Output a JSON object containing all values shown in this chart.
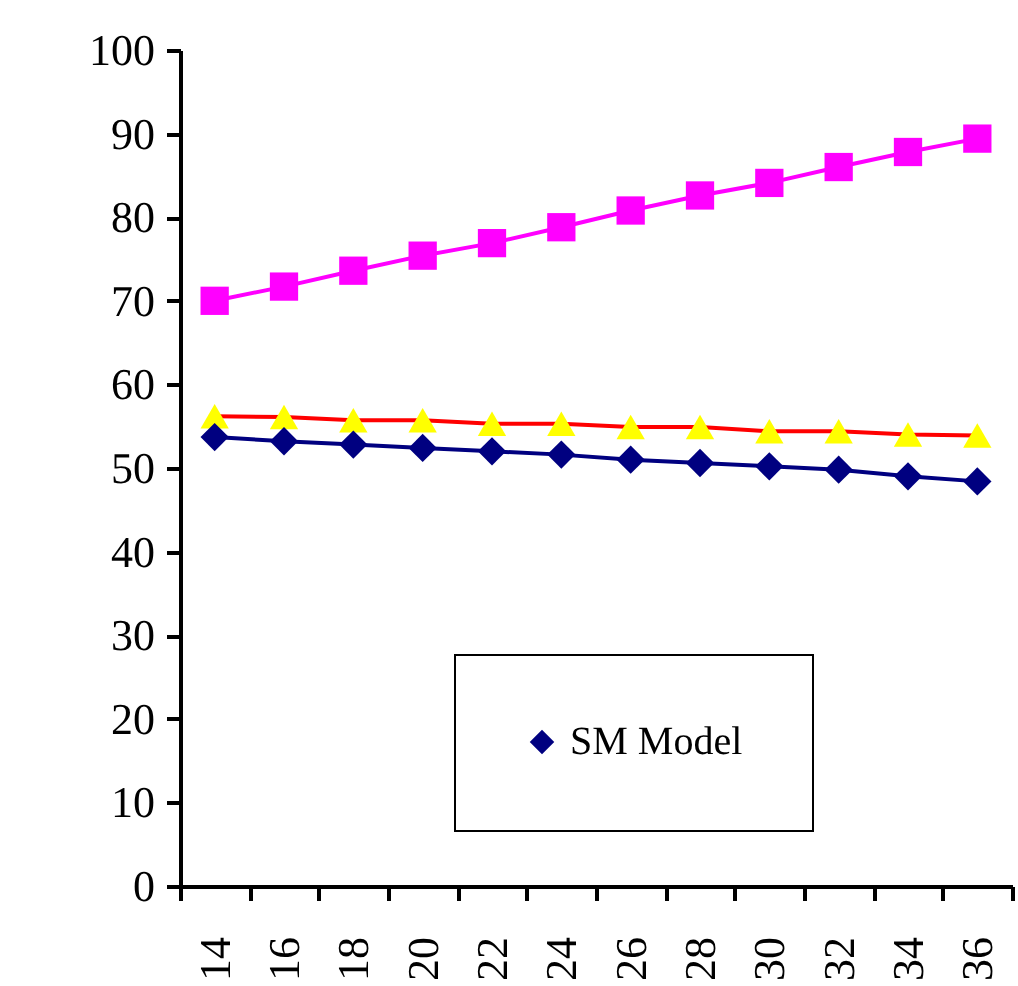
{
  "chart_data": {
    "type": "line",
    "categories": [
      "14",
      "16",
      "18",
      "20",
      "22",
      "24",
      "26",
      "28",
      "30",
      "32",
      "34",
      "36"
    ],
    "ylim": [
      0,
      100
    ],
    "yticks": [
      0,
      10,
      20,
      30,
      40,
      50,
      60,
      70,
      80,
      90,
      100
    ],
    "grid": false,
    "legend": "bottom right",
    "series": [
      {
        "color": "#ff00ff",
        "marker": "square",
        "values": [
          70,
          71.7,
          73.6,
          75.4,
          76.9,
          78.8,
          80.8,
          82.6,
          84.1,
          86.0,
          87.8,
          89.4
        ]
      },
      {
        "color": "#ff0000",
        "marker": "triangle",
        "colors": [
          "#ffff00",
          "#ffff00",
          "#ffff00",
          "#ffff00",
          "#ffff00",
          "#ffff00",
          "#ffff00",
          "#ffff00",
          "#ffff00",
          "#ffff00",
          "#ffff00",
          "#ffff00"
        ],
        "values": [
          56.2,
          56.1,
          55.7,
          55.7,
          55.3,
          55.3,
          54.9,
          54.9,
          54.4,
          54.4,
          54.0,
          53.9
        ]
      },
      {
        "name": "SM Model",
        "color": "#000080",
        "marker": "diamond",
        "values": [
          53.7,
          53.2,
          52.8,
          52.4,
          52.0,
          51.6,
          51.0,
          50.6,
          50.2,
          49.8,
          49.0,
          48.4
        ]
      }
    ]
  }
}
